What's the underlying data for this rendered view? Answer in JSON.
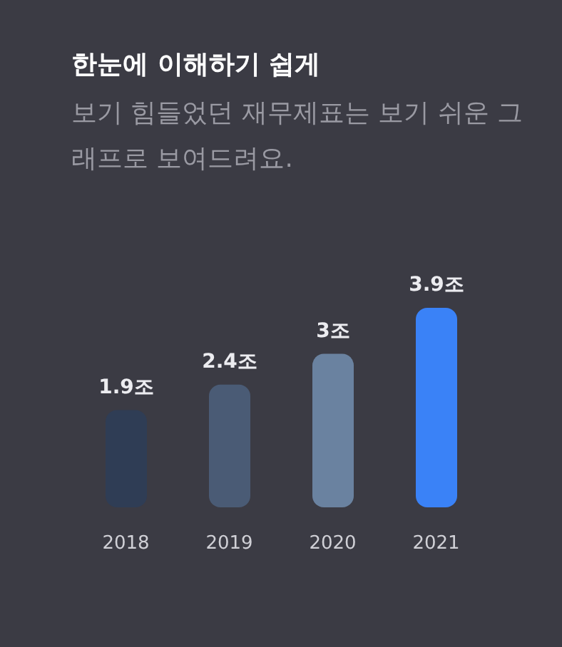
{
  "chart_data": {
    "type": "bar",
    "title": "한눈에 이해하기 쉽게",
    "subtitle": "보기 힘들었던 재무제표는 보기 쉬운 그래프로 보여드려요.",
    "categories": [
      "2018",
      "2019",
      "2020",
      "2021"
    ],
    "values": [
      1.9,
      2.4,
      3,
      3.9
    ],
    "colors": [
      "#2f3d55",
      "#4a5b75",
      "#6a82a0",
      "#3a82f7"
    ],
    "value_labels": [
      "1.9조",
      "2.4조",
      "3조",
      "3.9조"
    ]
  }
}
